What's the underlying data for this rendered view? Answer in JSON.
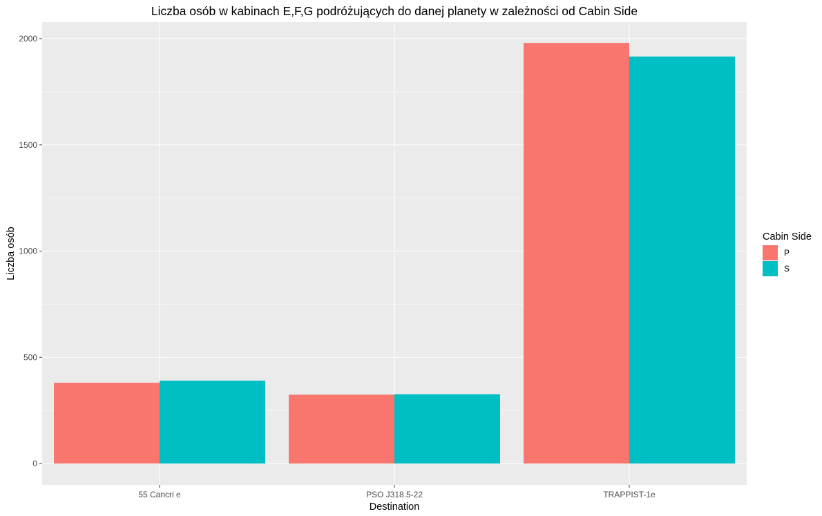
{
  "chart_data": {
    "type": "bar",
    "title": "Liczba osób w kabinach E,F,G podróżujących do danej planety w zależności od Cabin Side",
    "xlabel": "Destination",
    "ylabel": "Liczba osób",
    "categories": [
      "55 Cancri e",
      "PSO J318.5-22",
      "TRAPPIST-1e"
    ],
    "series": [
      {
        "name": "P",
        "values": [
          380,
          324,
          1980
        ],
        "color": "#F8766D"
      },
      {
        "name": "S",
        "values": [
          390,
          326,
          1916
        ],
        "color": "#00BFC4"
      }
    ],
    "ylim": [
      0,
      2090
    ],
    "yticks": [
      0,
      500,
      1000,
      1500,
      2000
    ],
    "grid": true,
    "legend": {
      "title": "Cabin Side",
      "position": "right"
    },
    "colors": {
      "panel": "#EBEBEB",
      "grid": "#FFFFFF",
      "tick_text": "#4D4D4D"
    }
  }
}
